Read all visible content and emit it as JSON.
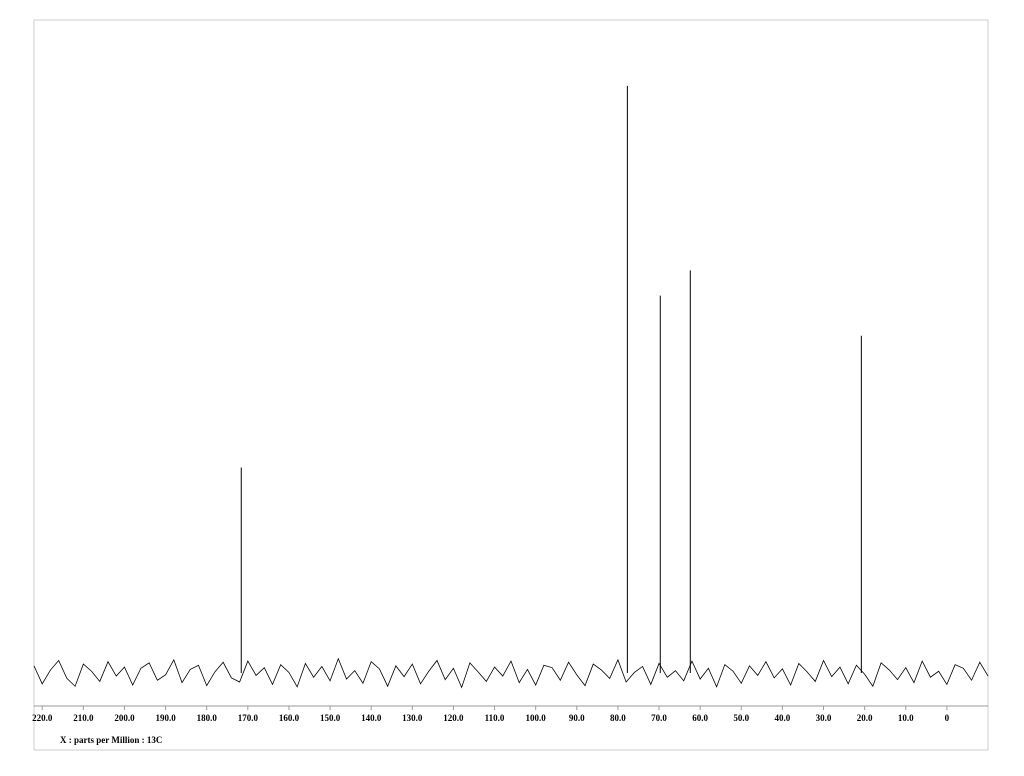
{
  "chart_data": {
    "type": "line",
    "x_label": "X : parts per Million : 13C",
    "xlim": [
      222,
      -10
    ],
    "ylim": [
      -0.55,
      10.9
    ],
    "xticks": [
      {
        "value": 220,
        "label": "220.0"
      },
      {
        "value": 210,
        "label": "210.0"
      },
      {
        "value": 200,
        "label": "200.0"
      },
      {
        "value": 190,
        "label": "190.0"
      },
      {
        "value": 180,
        "label": "180.0"
      },
      {
        "value": 170,
        "label": "170.0"
      },
      {
        "value": 160,
        "label": "160.0"
      },
      {
        "value": 150,
        "label": "150.0"
      },
      {
        "value": 140,
        "label": "140.0"
      },
      {
        "value": 130,
        "label": "130.0"
      },
      {
        "value": 120,
        "label": "120.0"
      },
      {
        "value": 110,
        "label": "110.0"
      },
      {
        "value": 100,
        "label": "100.0"
      },
      {
        "value": 90,
        "label": "90.0"
      },
      {
        "value": 80,
        "label": "80.0"
      },
      {
        "value": 70,
        "label": "70.0"
      },
      {
        "value": 60,
        "label": "60.0"
      },
      {
        "value": 50,
        "label": "50.0"
      },
      {
        "value": 40,
        "label": "40.0"
      },
      {
        "value": 30,
        "label": "30.0"
      },
      {
        "value": 20,
        "label": "20.0"
      },
      {
        "value": 10,
        "label": "10.0"
      },
      0
    ],
    "color": "#000000",
    "baseline": {
      "x": [
        222,
        220,
        218,
        216,
        214,
        212,
        210,
        208,
        206,
        204,
        202,
        200,
        198,
        196,
        194,
        192,
        190,
        188,
        186,
        184,
        182,
        180,
        178,
        176,
        174,
        172,
        170,
        168,
        166,
        164,
        162,
        160,
        158,
        156,
        154,
        152,
        150,
        148,
        146,
        144,
        142,
        140,
        138,
        136,
        134,
        132,
        130,
        128,
        126,
        124,
        122,
        120,
        118,
        116,
        114,
        112,
        110,
        108,
        106,
        104,
        102,
        100,
        98,
        96,
        94,
        92,
        90,
        88,
        86,
        84,
        82,
        80,
        78,
        76,
        74,
        72,
        70,
        68,
        66,
        64,
        62,
        60,
        58,
        56,
        54,
        52,
        50,
        48,
        46,
        44,
        42,
        40,
        38,
        36,
        34,
        32,
        30,
        28,
        26,
        24,
        22,
        20,
        18,
        16,
        14,
        12,
        10,
        8,
        6,
        4,
        2,
        0,
        -2,
        -4,
        -6,
        -8,
        -10
      ],
      "values": [
        0.12,
        -0.18,
        0.05,
        0.21,
        -0.09,
        -0.22,
        0.15,
        0.03,
        -0.14,
        0.19,
        -0.05,
        0.1,
        -0.2,
        0.08,
        0.17,
        -0.12,
        -0.03,
        0.22,
        -0.16,
        0.06,
        0.13,
        -0.21,
        0.02,
        0.18,
        -0.08,
        -0.15,
        0.2,
        -0.04,
        0.09,
        -0.19,
        0.14,
        0.01,
        -0.23,
        0.16,
        -0.07,
        0.11,
        -0.13,
        0.24,
        -0.1,
        0.04,
        -0.17,
        0.19,
        0.07,
        -0.22,
        0.12,
        -0.06,
        0.15,
        -0.18,
        0.03,
        0.21,
        -0.11,
        0.08,
        -0.24,
        0.17,
        0.02,
        -0.14,
        0.1,
        -0.05,
        0.2,
        -0.16,
        0.06,
        -0.2,
        0.13,
        0.09,
        -0.12,
        0.18,
        -0.03,
        -0.21,
        0.15,
        0.05,
        -0.09,
        0.22,
        -0.15,
        0.01,
        0.11,
        -0.19,
        0.16,
        -0.07,
        0.04,
        -0.13,
        0.2,
        -0.1,
        0.08,
        -0.23,
        0.14,
        0.03,
        -0.17,
        0.12,
        -0.04,
        0.19,
        -0.08,
        0.07,
        -0.2,
        0.16,
        0.02,
        -0.14,
        0.21,
        -0.06,
        0.1,
        -0.18,
        0.13,
        -0.02,
        -0.22,
        0.17,
        0.05,
        -0.11,
        0.09,
        -0.16,
        0.2,
        -0.07,
        0.03,
        -0.19,
        0.14,
        0.08,
        -0.12,
        0.18,
        -0.05
      ]
    },
    "peaks": {
      "x": [
        171.6,
        77.7,
        69.7,
        62.4,
        20.8
      ],
      "values": [
        3.43,
        9.8,
        6.3,
        6.72,
        5.63
      ]
    }
  }
}
